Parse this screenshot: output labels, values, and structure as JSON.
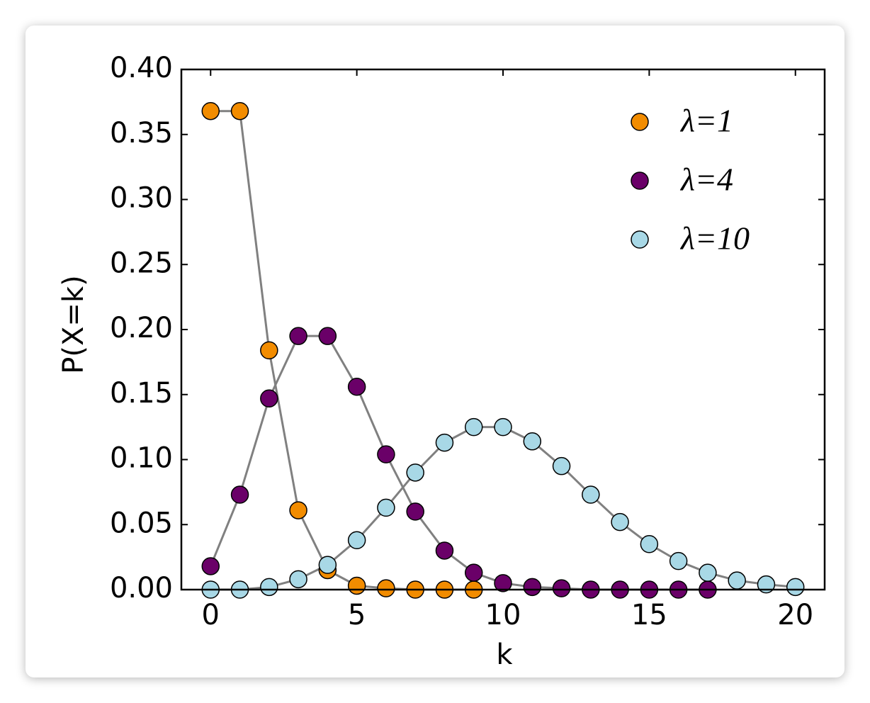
{
  "chart_data": {
    "type": "line",
    "x_label": "k",
    "y_label": "P(X=k)",
    "x": [
      0,
      1,
      2,
      3,
      4,
      5,
      6,
      7,
      8,
      9,
      10,
      11,
      12,
      13,
      14,
      15,
      16,
      17,
      18,
      19,
      20
    ],
    "series": [
      {
        "name": "λ=1",
        "color": "#f28c00",
        "values": [
          0.368,
          0.368,
          0.184,
          0.061,
          0.015,
          0.003,
          0.001,
          0.0,
          0.0,
          0.0,
          null,
          null,
          null,
          null,
          null,
          null,
          null,
          null,
          null,
          null,
          null
        ]
      },
      {
        "name": "λ=4",
        "color": "#6a0068",
        "values": [
          0.018,
          0.073,
          0.147,
          0.195,
          0.195,
          0.156,
          0.104,
          0.06,
          0.03,
          0.013,
          0.005,
          0.002,
          0.001,
          0.0,
          0.0,
          0.0,
          0.0,
          0.0,
          null,
          null,
          null
        ]
      },
      {
        "name": "λ=10",
        "color": "#a8d8e6",
        "values": [
          0.0,
          0.0,
          0.002,
          0.008,
          0.019,
          0.038,
          0.063,
          0.09,
          0.113,
          0.125,
          0.125,
          0.114,
          0.095,
          0.073,
          0.052,
          0.035,
          0.022,
          0.013,
          0.007,
          0.004,
          0.002
        ]
      }
    ],
    "line_color": "#808080",
    "xlim": [
      -1,
      21
    ],
    "ylim": [
      0,
      0.4
    ],
    "xticks": [
      0,
      5,
      10,
      15,
      20
    ],
    "yticks": [
      {
        "value": 0,
        "label": "0.00"
      },
      {
        "value": 0.05,
        "label": "0.05"
      },
      {
        "value": 0.1,
        "label": "0.10"
      },
      {
        "value": 0.15,
        "label": "0.15"
      },
      {
        "value": 0.2,
        "label": "0.20"
      },
      {
        "value": 0.25,
        "label": "0.25"
      },
      {
        "value": 0.3,
        "label": "0.30"
      },
      {
        "value": 0.35,
        "label": "0.35"
      },
      {
        "value": 0.4,
        "label": "0.40"
      }
    ],
    "grid": false,
    "legend": "upper right"
  }
}
